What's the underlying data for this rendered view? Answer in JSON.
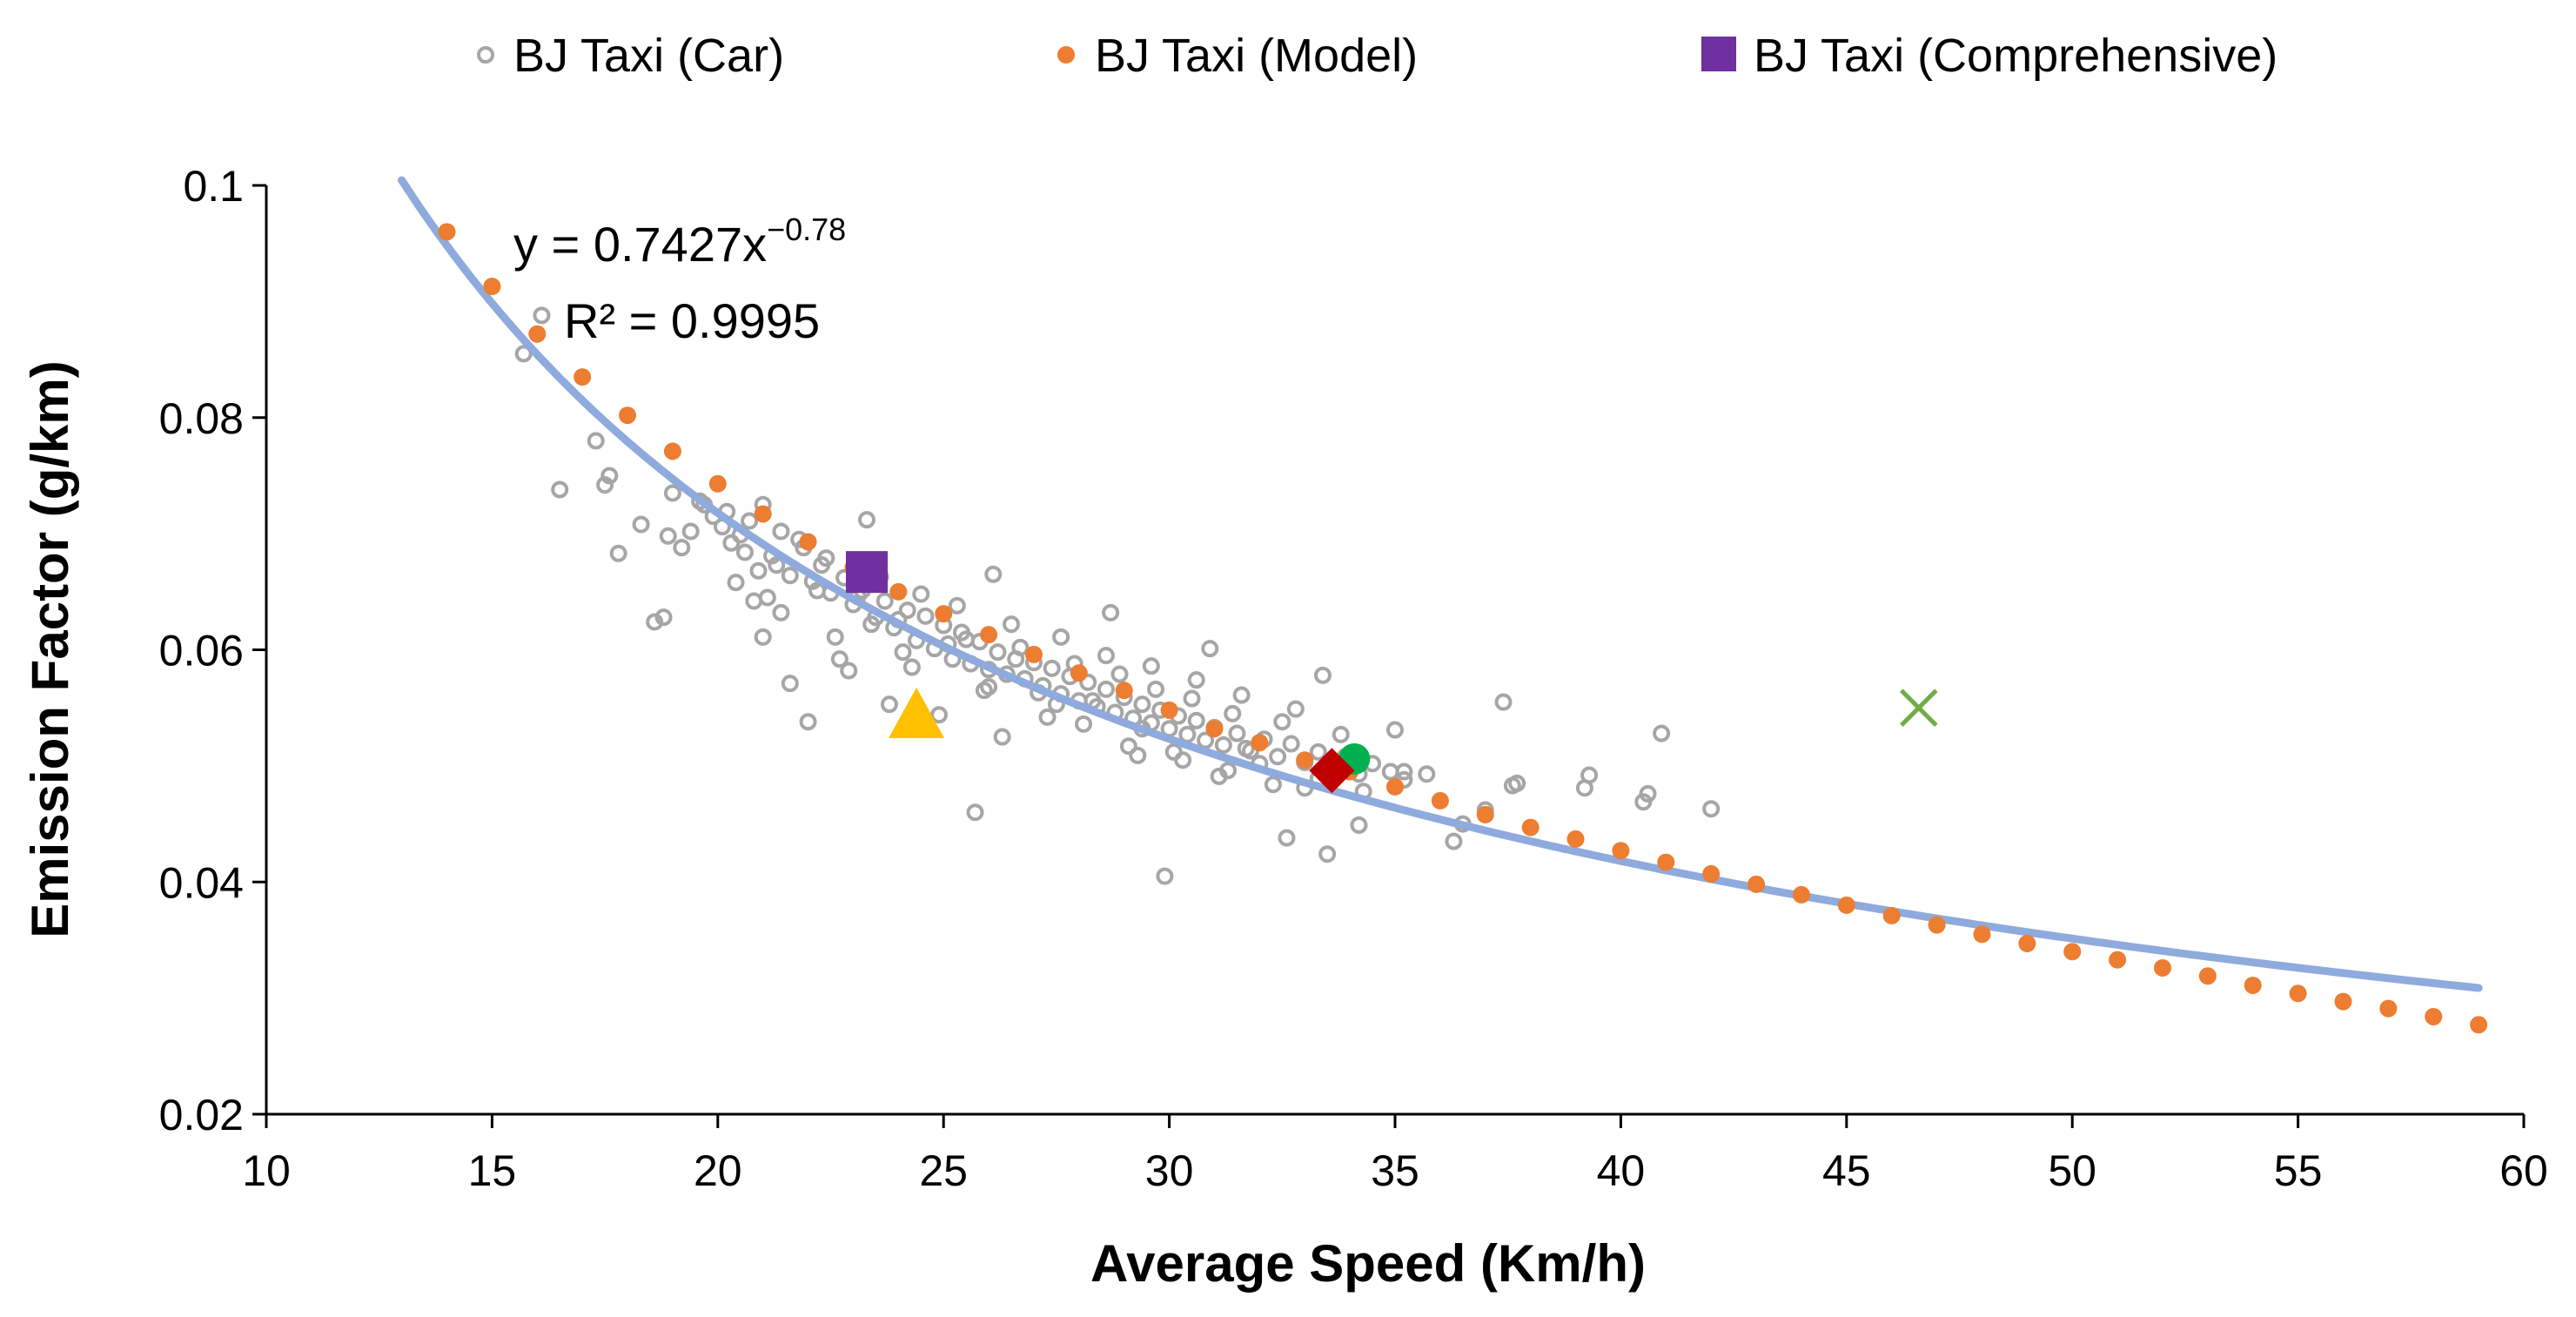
{
  "chart_data": {
    "type": "scatter",
    "title": "",
    "xlabel": "Average Speed (Km/h)",
    "ylabel": "Emission Factor (g/km)",
    "xlim": [
      10,
      60
    ],
    "ylim": [
      0.02,
      0.1
    ],
    "x_ticks": [
      10,
      15,
      20,
      25,
      30,
      35,
      40,
      45,
      50,
      55,
      60
    ],
    "y_ticks": [
      0.02,
      0.04,
      0.06,
      0.08,
      0.1
    ],
    "x_tick_labels": [
      "10",
      "15",
      "20",
      "25",
      "30",
      "35",
      "40",
      "45",
      "50",
      "55",
      "60"
    ],
    "y_tick_labels": [
      "0.02",
      "0.04",
      "0.06",
      "0.08",
      "0.1"
    ],
    "grid": false,
    "legend_position": "top",
    "legend": [
      {
        "label": "BJ Taxi (Car)",
        "marker": "hollow-circle",
        "color": "#a6a6a6"
      },
      {
        "label": "BJ Taxi (Model)",
        "marker": "dot",
        "color": "#ed7d31"
      },
      {
        "label": "BJ Taxi (Comprehensive)",
        "marker": "square",
        "color": "#7030a0"
      }
    ],
    "annotations": {
      "equation_base": "y = 0.7427x",
      "equation_exp": "−0.78",
      "r2": "R² = 0.9995"
    },
    "trendline": {
      "type": "power",
      "coefficient": 0.7427,
      "exponent": -0.78,
      "x_range": [
        13,
        59
      ],
      "color": "#8faadc"
    },
    "series": [
      {
        "name": "BJ Taxi (Model)",
        "color": "#ed7d31",
        "x": [
          14,
          15,
          16,
          17,
          18,
          19,
          20,
          21,
          22,
          23,
          24,
          25,
          26,
          27,
          28,
          29,
          30,
          31,
          32,
          33,
          34,
          35,
          36,
          37,
          38,
          39,
          40,
          41,
          42,
          43,
          44,
          45,
          46,
          47,
          48,
          49,
          50,
          51,
          52,
          53,
          54,
          55,
          56,
          57,
          58,
          59
        ],
        "y": [
          0.096,
          0.0913,
          0.0872,
          0.0835,
          0.0802,
          0.0771,
          0.0743,
          0.0717,
          0.0693,
          0.0671,
          0.065,
          0.0631,
          0.0613,
          0.0596,
          0.058,
          0.0565,
          0.0548,
          0.0532,
          0.052,
          0.0505,
          0.0495,
          0.0482,
          0.047,
          0.0458,
          0.0447,
          0.0437,
          0.0427,
          0.0417,
          0.0407,
          0.0398,
          0.0389,
          0.038,
          0.0371,
          0.0363,
          0.0355,
          0.0347,
          0.034,
          0.0333,
          0.0326,
          0.0319,
          0.0311,
          0.0304,
          0.0297,
          0.0291,
          0.0284,
          0.0277
        ]
      },
      {
        "name": "BJ Taxi (Comprehensive)",
        "color": "#7030a0",
        "x": [
          23.3
        ],
        "y": [
          0.0667
        ]
      },
      {
        "name": "Unlabeled triangle marker",
        "color": "#ffc000",
        "x": [
          24.4
        ],
        "y": [
          0.0545
        ]
      },
      {
        "name": "Unlabeled circle marker",
        "color": "#00b050",
        "x": [
          34.1
        ],
        "y": [
          0.0506
        ]
      },
      {
        "name": "Unlabeled diamond marker",
        "color": "#c00000",
        "x": [
          33.6
        ],
        "y": [
          0.0496
        ]
      },
      {
        "name": "Unlabeled cross marker",
        "color": "#70ad47",
        "x": [
          46.6
        ],
        "y": [
          0.055
        ]
      },
      {
        "name": "BJ Taxi (Car)",
        "color": "#a6a6a6",
        "x": [
          16.1,
          15.7,
          16.5,
          17.5,
          17.8,
          18.3,
          18.6,
          17.3,
          17.6,
          18.9,
          19.0,
          19.2,
          19.4,
          19.7,
          19.9,
          20.1,
          20.3,
          20.5,
          20.7,
          20.9,
          21.0,
          21.2,
          21.4,
          21.6,
          21.9,
          22.1,
          22.3,
          22.5,
          22.8,
          23.0,
          23.2,
          23.5,
          23.7,
          23.9,
          24.2,
          24.4,
          24.6,
          24.8,
          25.0,
          25.2,
          25.4,
          25.6,
          25.8,
          26.0,
          26.2,
          26.4,
          26.6,
          26.8,
          27.0,
          27.2,
          27.4,
          27.6,
          27.8,
          28.0,
          28.2,
          28.4,
          28.6,
          28.8,
          29.0,
          29.2,
          29.4,
          29.6,
          29.8,
          30.0,
          30.2,
          30.4,
          30.6,
          30.8,
          31.0,
          31.2,
          31.5,
          31.8,
          32.1,
          32.4,
          32.7,
          33.0,
          33.3,
          33.6,
          33.9,
          34.2,
          34.5,
          34.9,
          35.2,
          35.7,
          36.3,
          37.0,
          37.4,
          37.6,
          39.3,
          40.6,
          40.9,
          42.0,
          29.9,
          25.7,
          32.6,
          33.5,
          36.5,
          34.2,
          22.0,
          18.8,
          21.4,
          20.8,
          21.6,
          22.9,
          23.8,
          24.9,
          26.3,
          27.3,
          28.3,
          29.3,
          30.3,
          31.3,
          32.3,
          33.3,
          34.3,
          35.2,
          20.4,
          21.1,
          22.6,
          23.4,
          24.1,
          25.1,
          26.0,
          27.1,
          28.1,
          29.1,
          30.1,
          31.1,
          32.0,
          33.0,
          21.8,
          22.4,
          23.6,
          24.5,
          25.3,
          26.5,
          27.6,
          28.6,
          29.6,
          30.6,
          31.6,
          32.8,
          19.6,
          20.2,
          20.6,
          21.3,
          22.2,
          23.1,
          24.0,
          25.5,
          26.7,
          27.9,
          28.9,
          29.7,
          30.5,
          31.4,
          32.5,
          33.8,
          21.0,
          22.7,
          24.3,
          25.9,
          27.5,
          29.4,
          31.7,
          23.3,
          26.1,
          28.7,
          30.9,
          33.4,
          35.0,
          37.7,
          39.2,
          40.5
        ],
        "y": [
          0.0888,
          0.0855,
          0.0738,
          0.0742,
          0.0683,
          0.0708,
          0.0624,
          0.078,
          0.075,
          0.0698,
          0.0735,
          0.0688,
          0.0702,
          0.0725,
          0.0715,
          0.0706,
          0.0692,
          0.0699,
          0.0711,
          0.0668,
          0.0725,
          0.0681,
          0.0702,
          0.0664,
          0.0688,
          0.0659,
          0.0673,
          0.0649,
          0.0662,
          0.0639,
          0.0651,
          0.0628,
          0.0642,
          0.0619,
          0.0634,
          0.0608,
          0.0629,
          0.0601,
          0.0621,
          0.0592,
          0.0615,
          0.0588,
          0.0607,
          0.0583,
          0.0598,
          0.0579,
          0.0592,
          0.0575,
          0.0589,
          0.0569,
          0.0584,
          0.0562,
          0.0577,
          0.0556,
          0.0572,
          0.0551,
          0.0566,
          0.0546,
          0.0559,
          0.0541,
          0.0553,
          0.0537,
          0.0548,
          0.0532,
          0.0543,
          0.0527,
          0.0539,
          0.0522,
          0.0533,
          0.0518,
          0.0528,
          0.0513,
          0.0523,
          0.0508,
          0.0519,
          0.0503,
          0.0512,
          0.0497,
          0.0508,
          0.0493,
          0.0502,
          0.0495,
          0.0488,
          0.0493,
          0.0435,
          0.0462,
          0.0555,
          0.0483,
          0.0492,
          0.0476,
          0.0528,
          0.0463,
          0.0405,
          0.046,
          0.0438,
          0.0424,
          0.045,
          0.0449,
          0.0538,
          0.0628,
          0.0632,
          0.0642,
          0.0571,
          0.0582,
          0.0553,
          0.0544,
          0.0525,
          0.0542,
          0.0556,
          0.0509,
          0.0505,
          0.0496,
          0.0484,
          0.0489,
          0.0478,
          0.0495,
          0.0658,
          0.0645,
          0.0611,
          0.0622,
          0.0598,
          0.0605,
          0.0568,
          0.0563,
          0.0536,
          0.0517,
          0.0512,
          0.0491,
          0.0502,
          0.0481,
          0.0695,
          0.0679,
          0.0663,
          0.0648,
          0.0638,
          0.0622,
          0.0611,
          0.0595,
          0.0586,
          0.0574,
          0.0561,
          0.0549,
          0.0728,
          0.0719,
          0.0684,
          0.0673,
          0.0651,
          0.0646,
          0.0626,
          0.0609,
          0.0602,
          0.0588,
          0.0579,
          0.0566,
          0.0558,
          0.0545,
          0.0538,
          0.0527,
          0.0611,
          0.0592,
          0.0585,
          0.0565,
          0.0553,
          0.0532,
          0.0515,
          0.0712,
          0.0665,
          0.0632,
          0.0601,
          0.0578,
          0.0531,
          0.0485,
          0.0481,
          0.0469
        ]
      }
    ]
  }
}
